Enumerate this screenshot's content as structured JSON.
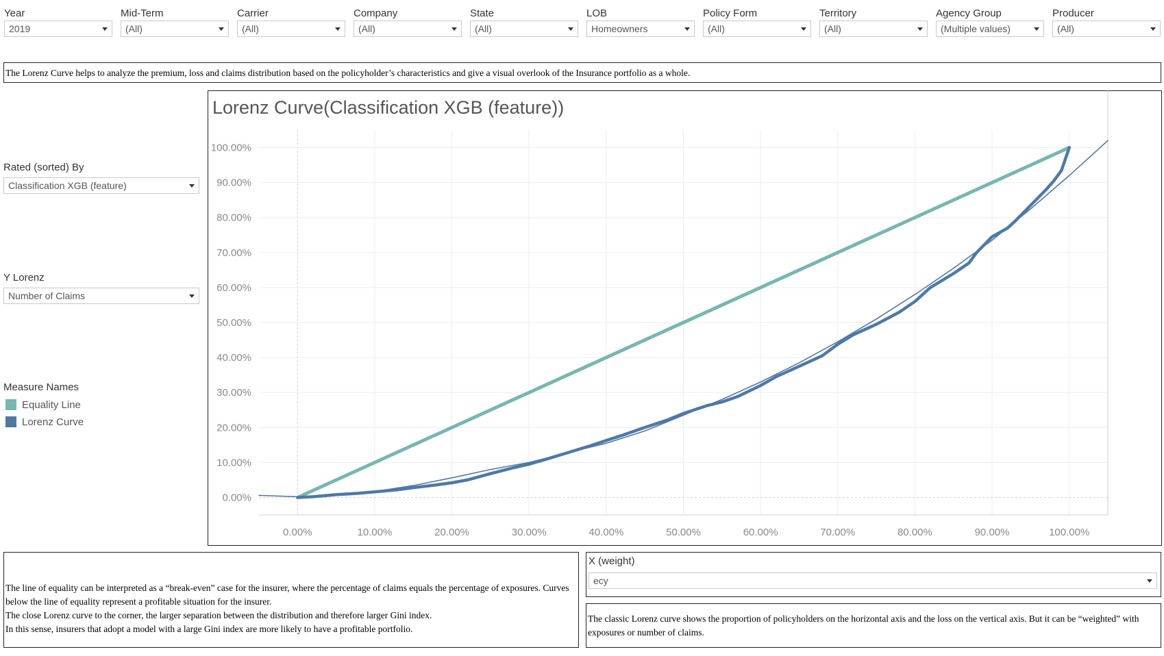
{
  "filters": [
    {
      "label": "Year",
      "value": "2019"
    },
    {
      "label": "Mid-Term",
      "value": "(All)"
    },
    {
      "label": "Carrier",
      "value": "(All)"
    },
    {
      "label": "Company",
      "value": "(All)"
    },
    {
      "label": "State",
      "value": "(All)"
    },
    {
      "label": "LOB",
      "value": "Homeowners"
    },
    {
      "label": "Policy Form",
      "value": "(All)"
    },
    {
      "label": "Territory",
      "value": "(All)"
    },
    {
      "label": "Agency Group",
      "value": "(Multiple values)"
    },
    {
      "label": "Producer",
      "value": "(All)"
    }
  ],
  "intro_text": "The Lorenz Curve helps to analyze the premium, loss and claims distribution based on the policyholder’s characteristics and give a visual overlook of the Insurance portfolio as a whole.",
  "rated_by": {
    "label": "Rated (sorted) By",
    "value": "Classification XGB (feature)"
  },
  "y_lorenz": {
    "label": "Y Lorenz",
    "value": "Number of Claims"
  },
  "legend": {
    "title": "Measure Names",
    "items": [
      {
        "name": "Equality Line",
        "color": "#76b7b2"
      },
      {
        "name": "Lorenz Curve",
        "color": "#4e79a7"
      }
    ]
  },
  "x_weight": {
    "label": "X (weight)",
    "value": "ecy"
  },
  "bottom_left_text": [
    "The line of equality can be interpreted as a “break-even” case for the insurer, where the percentage of claims equals the percentage of exposures. Curves below the line of equality represent a profitable situation for the insurer.",
    "The close Lorenz curve to the corner, the larger separation between the distribution and therefore larger Gini index.",
    "In this sense, insurers that adopt a model with a large Gini index are more likely to have a profitable portfolio."
  ],
  "bottom_right_text": "The classic Lorenz curve shows the proportion of policyholders on the horizontal axis and the loss on the vertical axis. But it can be “weighted” with exposures or number of claims.",
  "chart_data": {
    "type": "line",
    "title": "Lorenz Curve(Classification XGB (feature))",
    "xlim": [
      -0.05,
      1.05
    ],
    "ylim": [
      -0.05,
      1.05
    ],
    "x_ticks": [
      "0.00%",
      "10.00%",
      "20.00%",
      "30.00%",
      "40.00%",
      "50.00%",
      "60.00%",
      "70.00%",
      "80.00%",
      "90.00%",
      "100.00%"
    ],
    "y_ticks": [
      "0.00%",
      "10.00%",
      "20.00%",
      "30.00%",
      "40.00%",
      "50.00%",
      "60.00%",
      "70.00%",
      "80.00%",
      "90.00%",
      "100.00%"
    ],
    "grid": true,
    "series": [
      {
        "name": "Equality Line",
        "color": "#76b7b2",
        "points": [
          [
            0,
            0
          ],
          [
            1,
            1
          ]
        ]
      },
      {
        "name": "Lorenz Curve",
        "color": "#4e79a7",
        "points": [
          [
            0,
            0
          ],
          [
            0.02,
            0.002
          ],
          [
            0.05,
            0.008
          ],
          [
            0.08,
            0.012
          ],
          [
            0.1,
            0.016
          ],
          [
            0.13,
            0.022
          ],
          [
            0.15,
            0.028
          ],
          [
            0.18,
            0.036
          ],
          [
            0.2,
            0.042
          ],
          [
            0.22,
            0.05
          ],
          [
            0.25,
            0.068
          ],
          [
            0.28,
            0.085
          ],
          [
            0.3,
            0.095
          ],
          [
            0.32,
            0.108
          ],
          [
            0.35,
            0.128
          ],
          [
            0.38,
            0.148
          ],
          [
            0.4,
            0.163
          ],
          [
            0.42,
            0.177
          ],
          [
            0.45,
            0.2
          ],
          [
            0.48,
            0.222
          ],
          [
            0.5,
            0.24
          ],
          [
            0.53,
            0.262
          ],
          [
            0.55,
            0.273
          ],
          [
            0.57,
            0.288
          ],
          [
            0.6,
            0.32
          ],
          [
            0.62,
            0.345
          ],
          [
            0.65,
            0.375
          ],
          [
            0.68,
            0.405
          ],
          [
            0.7,
            0.438
          ],
          [
            0.72,
            0.465
          ],
          [
            0.75,
            0.495
          ],
          [
            0.78,
            0.53
          ],
          [
            0.8,
            0.56
          ],
          [
            0.82,
            0.6
          ],
          [
            0.85,
            0.64
          ],
          [
            0.87,
            0.67
          ],
          [
            0.88,
            0.7
          ],
          [
            0.9,
            0.745
          ],
          [
            0.92,
            0.77
          ],
          [
            0.93,
            0.79
          ],
          [
            0.95,
            0.835
          ],
          [
            0.97,
            0.88
          ],
          [
            0.98,
            0.905
          ],
          [
            0.99,
            0.935
          ],
          [
            1.0,
            1.0
          ]
        ]
      },
      {
        "name": "Trend",
        "color": "#4e79a7",
        "points": [
          [
            -0.05,
            0.006
          ],
          [
            0,
            0.002
          ],
          [
            0.05,
            0.006
          ],
          [
            0.1,
            0.017
          ],
          [
            0.15,
            0.034
          ],
          [
            0.2,
            0.056
          ],
          [
            0.25,
            0.08
          ],
          [
            0.3,
            0.1
          ],
          [
            0.35,
            0.128
          ],
          [
            0.4,
            0.155
          ],
          [
            0.45,
            0.19
          ],
          [
            0.5,
            0.235
          ],
          [
            0.55,
            0.28
          ],
          [
            0.6,
            0.33
          ],
          [
            0.65,
            0.385
          ],
          [
            0.7,
            0.445
          ],
          [
            0.75,
            0.51
          ],
          [
            0.8,
            0.58
          ],
          [
            0.85,
            0.655
          ],
          [
            0.9,
            0.735
          ],
          [
            0.95,
            0.825
          ],
          [
            1.0,
            0.92
          ],
          [
            1.05,
            1.02
          ]
        ]
      }
    ]
  }
}
